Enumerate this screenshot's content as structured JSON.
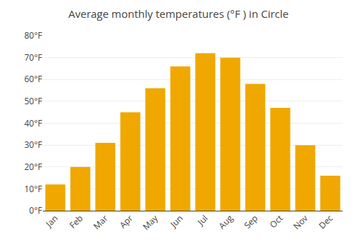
{
  "chart_data": {
    "type": "bar",
    "title": "Average monthly temperatures (°F ) in Circle",
    "categories": [
      "Jan",
      "Feb",
      "Mar",
      "Apr",
      "May",
      "Jun",
      "Jul",
      "Aug",
      "Sep",
      "Oct",
      "Nov",
      "Dec"
    ],
    "values": [
      12,
      20,
      31,
      45,
      56,
      66,
      72,
      70,
      58,
      47,
      30,
      16
    ],
    "color": "#F0A800",
    "ylim": [
      0,
      80
    ],
    "yticks": [
      {
        "value": 0,
        "label": "0°F"
      },
      {
        "value": 10,
        "label": "10°F"
      },
      {
        "value": 20,
        "label": "20°F"
      },
      {
        "value": 30,
        "label": "30°F"
      },
      {
        "value": 40,
        "label": "40°F"
      },
      {
        "value": 50,
        "label": "50°F"
      },
      {
        "value": 60,
        "label": "60°F"
      },
      {
        "value": 70,
        "label": "70°F"
      },
      {
        "value": 80,
        "label": "80°F"
      }
    ],
    "grid": true
  }
}
